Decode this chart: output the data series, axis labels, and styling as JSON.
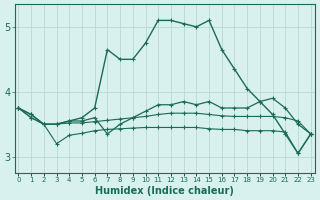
{
  "xlabel": "Humidex (Indice chaleur)",
  "x": [
    0,
    1,
    2,
    3,
    4,
    5,
    6,
    7,
    8,
    9,
    10,
    11,
    12,
    13,
    14,
    15,
    16,
    17,
    18,
    19,
    20,
    21,
    22,
    23
  ],
  "line1": [
    3.75,
    3.65,
    3.5,
    3.5,
    3.55,
    3.6,
    3.75,
    4.65,
    4.5,
    4.5,
    4.75,
    5.1,
    5.1,
    5.05,
    5.0,
    5.1,
    4.65,
    4.35,
    4.05,
    3.85,
    3.65,
    3.35,
    3.05,
    3.35
  ],
  "line2": [
    3.75,
    3.65,
    3.5,
    3.5,
    3.55,
    3.55,
    3.6,
    3.35,
    3.5,
    3.6,
    3.7,
    3.8,
    3.8,
    3.85,
    3.8,
    3.85,
    3.75,
    3.75,
    3.75,
    3.85,
    3.9,
    3.75,
    3.5,
    3.35
  ],
  "line3": [
    3.75,
    3.6,
    3.5,
    3.5,
    3.52,
    3.52,
    3.54,
    3.56,
    3.58,
    3.6,
    3.62,
    3.65,
    3.67,
    3.67,
    3.67,
    3.65,
    3.63,
    3.62,
    3.62,
    3.62,
    3.62,
    3.6,
    3.55,
    3.35
  ],
  "line4": [
    3.75,
    3.6,
    3.5,
    3.2,
    3.33,
    3.36,
    3.4,
    3.42,
    3.43,
    3.44,
    3.45,
    3.45,
    3.45,
    3.45,
    3.45,
    3.43,
    3.42,
    3.42,
    3.4,
    3.4,
    3.4,
    3.38,
    3.05,
    3.35
  ],
  "line_color": "#1a6b5a",
  "bg_color": "#d8f0ee",
  "grid_color": "#b8d8d4",
  "ylim": [
    2.75,
    5.35
  ],
  "yticks": [
    3,
    4,
    5
  ],
  "xlim": [
    -0.3,
    23.3
  ]
}
